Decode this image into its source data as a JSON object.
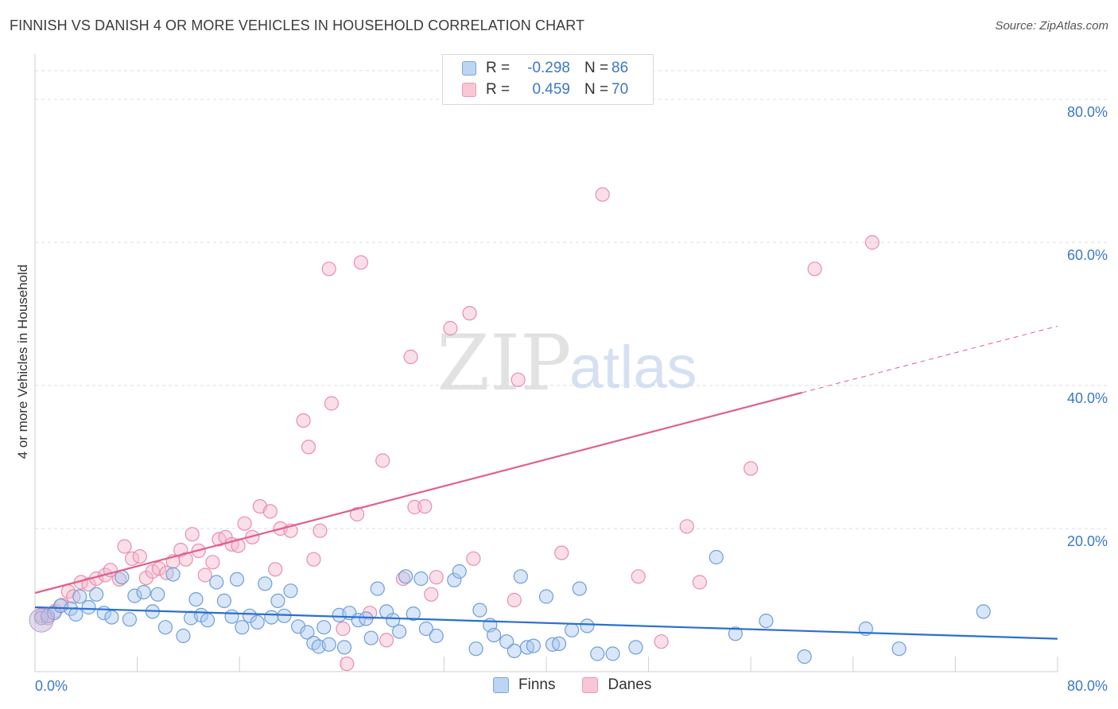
{
  "header": {
    "title": "FINNISH VS DANISH 4 OR MORE VEHICLES IN HOUSEHOLD CORRELATION CHART",
    "source": "Source: ZipAtlas.com"
  },
  "legend": {
    "items": [
      {
        "r_label": "R =",
        "r_value": "-0.298",
        "n_label": "N =",
        "n_value": "86"
      },
      {
        "r_label": "R =",
        "r_value": "0.459",
        "n_label": "N =",
        "n_value": "70"
      }
    ]
  },
  "bottom_legend": {
    "finns": "Finns",
    "danes": "Danes"
  },
  "watermark": {
    "zip": "ZIP",
    "atlas": "atlas"
  },
  "colors": {
    "finns_fill": "#a9c8ee",
    "finns_stroke": "#6f9fd8",
    "finns_line": "#2a6fcf",
    "danes_fill": "#f5b8cb",
    "danes_stroke": "#ea8eab",
    "danes_line": "#e0608a",
    "tick_label": "#3a78c8"
  },
  "chart_data": {
    "type": "scatter",
    "title": "FINNISH VS DANISH 4 OR MORE VEHICLES IN HOUSEHOLD CORRELATION CHART",
    "xlabel": "",
    "ylabel": "4 or more Vehicles in Household",
    "xlim": [
      0,
      80
    ],
    "ylim": [
      0,
      85
    ],
    "x_tick_labels": [
      "0.0%",
      "80.0%"
    ],
    "y_ticks": [
      20,
      40,
      60,
      80
    ],
    "y_tick_labels": [
      "20.0%",
      "40.0%",
      "60.0%",
      "80.0%"
    ],
    "grid": true,
    "legend_position": "top-center",
    "series": [
      {
        "name": "Finns",
        "r": -0.298,
        "n": 86,
        "trend": {
          "x": [
            0,
            80
          ],
          "y": [
            9.0,
            4.6
          ]
        },
        "points": [
          [
            0.5,
            7.5
          ],
          [
            1.0,
            7.8
          ],
          [
            1.5,
            8.2
          ],
          [
            2.0,
            9.2
          ],
          [
            2.8,
            8.8
          ],
          [
            3.2,
            8.0
          ],
          [
            3.5,
            10.5
          ],
          [
            4.2,
            9.0
          ],
          [
            4.8,
            10.8
          ],
          [
            5.4,
            8.2
          ],
          [
            6.0,
            7.6
          ],
          [
            6.8,
            13.2
          ],
          [
            7.4,
            7.3
          ],
          [
            7.8,
            10.6
          ],
          [
            8.5,
            11.1
          ],
          [
            9.2,
            8.4
          ],
          [
            9.6,
            10.8
          ],
          [
            10.2,
            6.2
          ],
          [
            10.8,
            13.6
          ],
          [
            11.6,
            5.0
          ],
          [
            12.2,
            7.5
          ],
          [
            12.6,
            10.1
          ],
          [
            13.0,
            7.9
          ],
          [
            13.5,
            7.2
          ],
          [
            14.2,
            12.5
          ],
          [
            14.8,
            9.9
          ],
          [
            15.4,
            7.7
          ],
          [
            15.8,
            12.9
          ],
          [
            16.2,
            6.2
          ],
          [
            16.8,
            7.8
          ],
          [
            17.4,
            6.9
          ],
          [
            18.0,
            12.3
          ],
          [
            18.5,
            7.6
          ],
          [
            19.0,
            9.9
          ],
          [
            19.5,
            7.8
          ],
          [
            20.0,
            11.3
          ],
          [
            20.6,
            6.3
          ],
          [
            21.3,
            5.5
          ],
          [
            21.8,
            4.0
          ],
          [
            22.2,
            3.5
          ],
          [
            22.6,
            6.2
          ],
          [
            23.0,
            3.8
          ],
          [
            23.8,
            7.9
          ],
          [
            24.2,
            3.4
          ],
          [
            24.6,
            8.2
          ],
          [
            25.3,
            7.2
          ],
          [
            25.9,
            7.4
          ],
          [
            26.3,
            4.7
          ],
          [
            26.8,
            11.6
          ],
          [
            27.5,
            8.4
          ],
          [
            28.0,
            7.2
          ],
          [
            28.5,
            5.6
          ],
          [
            29.0,
            13.3
          ],
          [
            29.6,
            8.1
          ],
          [
            30.2,
            13.0
          ],
          [
            30.6,
            6.0
          ],
          [
            31.4,
            5.0
          ],
          [
            32.8,
            12.8
          ],
          [
            33.2,
            14.0
          ],
          [
            34.5,
            3.2
          ],
          [
            34.8,
            8.6
          ],
          [
            35.6,
            6.5
          ],
          [
            35.9,
            5.1
          ],
          [
            36.9,
            4.2
          ],
          [
            37.5,
            2.9
          ],
          [
            38.0,
            13.3
          ],
          [
            38.5,
            3.4
          ],
          [
            39.0,
            3.6
          ],
          [
            40.0,
            10.5
          ],
          [
            40.5,
            3.8
          ],
          [
            41.0,
            3.9
          ],
          [
            42.0,
            5.8
          ],
          [
            42.6,
            11.6
          ],
          [
            43.2,
            6.4
          ],
          [
            44.0,
            2.5
          ],
          [
            45.2,
            2.5
          ],
          [
            47.0,
            3.4
          ],
          [
            53.3,
            16.0
          ],
          [
            54.8,
            5.3
          ],
          [
            57.2,
            7.1
          ],
          [
            60.2,
            2.1
          ],
          [
            65.0,
            6.0
          ],
          [
            67.6,
            3.2
          ],
          [
            74.2,
            8.4
          ]
        ]
      },
      {
        "name": "Danes",
        "r": 0.459,
        "n": 70,
        "trend": {
          "x": [
            0,
            60
          ],
          "y": [
            11.0,
            39.0
          ]
        },
        "trend_extension": {
          "x": [
            60,
            80
          ],
          "y": [
            39.0,
            48.3
          ]
        },
        "points": [
          [
            0.5,
            7.8
          ],
          [
            1.0,
            7.5
          ],
          [
            1.6,
            8.5
          ],
          [
            2.1,
            9.3
          ],
          [
            2.6,
            11.2
          ],
          [
            3.0,
            10.5
          ],
          [
            3.6,
            12.5
          ],
          [
            4.2,
            12.2
          ],
          [
            4.8,
            13.0
          ],
          [
            5.5,
            13.5
          ],
          [
            5.9,
            14.2
          ],
          [
            6.6,
            12.9
          ],
          [
            7.0,
            17.5
          ],
          [
            7.6,
            15.8
          ],
          [
            8.2,
            16.1
          ],
          [
            8.7,
            13.1
          ],
          [
            9.2,
            14.0
          ],
          [
            9.7,
            14.4
          ],
          [
            10.3,
            13.8
          ],
          [
            10.8,
            15.4
          ],
          [
            11.4,
            17.0
          ],
          [
            11.8,
            15.7
          ],
          [
            12.3,
            19.2
          ],
          [
            12.8,
            16.9
          ],
          [
            13.3,
            13.5
          ],
          [
            13.9,
            15.3
          ],
          [
            14.4,
            18.5
          ],
          [
            14.9,
            18.8
          ],
          [
            15.4,
            17.8
          ],
          [
            15.9,
            17.6
          ],
          [
            16.4,
            20.7
          ],
          [
            17.0,
            18.8
          ],
          [
            17.6,
            23.1
          ],
          [
            18.4,
            22.4
          ],
          [
            18.8,
            14.3
          ],
          [
            19.2,
            20.0
          ],
          [
            20.0,
            19.7
          ],
          [
            21.0,
            35.1
          ],
          [
            21.4,
            31.4
          ],
          [
            21.8,
            15.7
          ],
          [
            22.3,
            19.7
          ],
          [
            23.0,
            56.3
          ],
          [
            23.2,
            37.5
          ],
          [
            24.1,
            6.0
          ],
          [
            24.4,
            1.1
          ],
          [
            25.2,
            22.0
          ],
          [
            25.5,
            57.2
          ],
          [
            26.2,
            8.2
          ],
          [
            27.2,
            29.5
          ],
          [
            27.5,
            4.4
          ],
          [
            28.8,
            13.0
          ],
          [
            29.4,
            44.0
          ],
          [
            29.7,
            23.0
          ],
          [
            30.5,
            23.1
          ],
          [
            31.0,
            10.8
          ],
          [
            31.4,
            13.2
          ],
          [
            32.5,
            48.0
          ],
          [
            34.0,
            50.1
          ],
          [
            34.3,
            15.8
          ],
          [
            37.5,
            10.0
          ],
          [
            37.8,
            40.8
          ],
          [
            41.2,
            16.6
          ],
          [
            44.4,
            66.7
          ],
          [
            47.2,
            13.3
          ],
          [
            49.0,
            4.2
          ],
          [
            51.0,
            20.3
          ],
          [
            52.0,
            12.5
          ],
          [
            56.0,
            28.4
          ],
          [
            61.0,
            56.3
          ],
          [
            65.5,
            60.0
          ]
        ]
      }
    ]
  }
}
